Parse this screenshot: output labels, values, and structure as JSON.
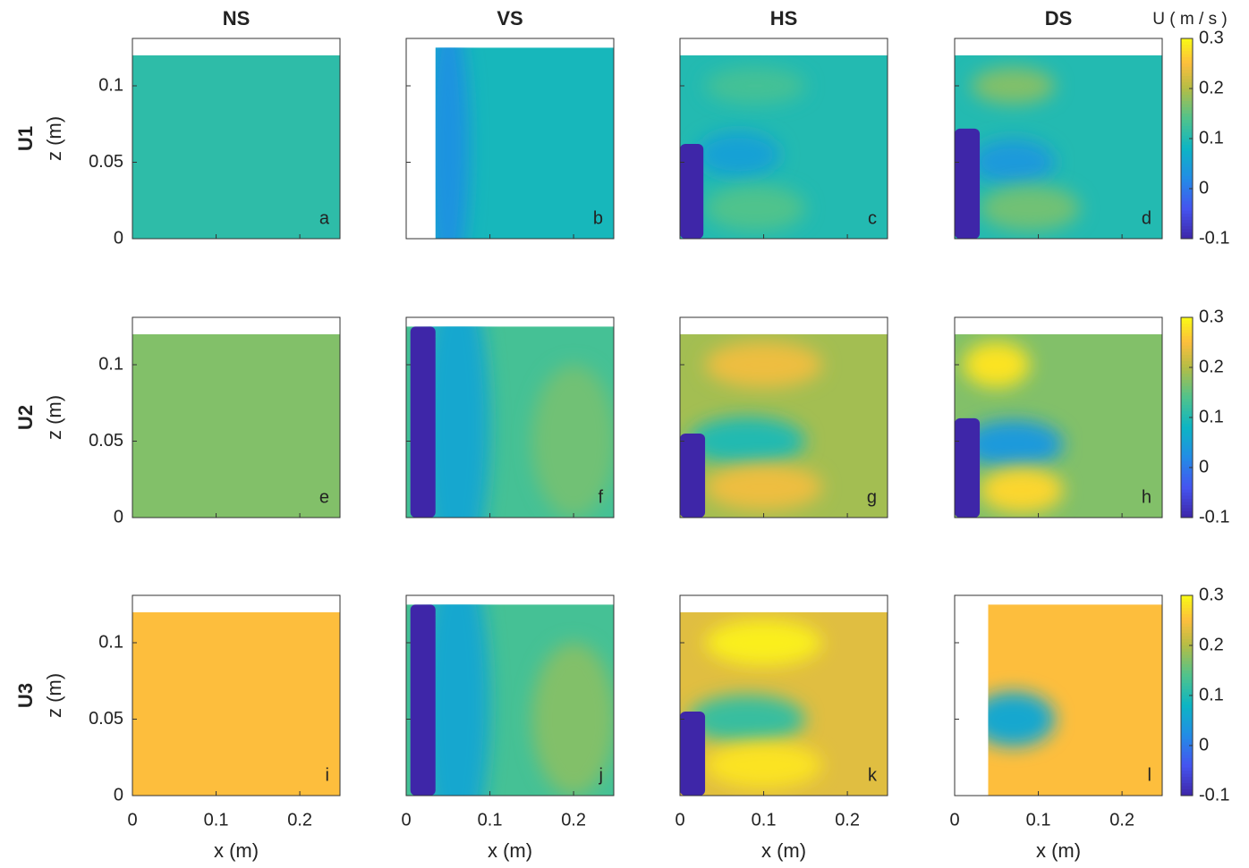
{
  "chart_data": {
    "type": "heatmap",
    "column_titles": [
      "NS",
      "VS",
      "HS",
      "DS"
    ],
    "row_titles": [
      "U1",
      "U2",
      "U3"
    ],
    "xlabel": "x (m)",
    "ylabel": "z (m)",
    "xlim": [
      0,
      0.248
    ],
    "ylim": [
      0,
      0.131
    ],
    "xticks": [
      0,
      0.1,
      0.2
    ],
    "yticks": [
      0,
      0.05,
      0.1
    ],
    "colorbar": {
      "label": "U ( m / s )",
      "lim": [
        -0.1,
        0.3
      ],
      "ticks": [
        -0.1,
        0,
        0.1,
        0.2,
        0.3
      ],
      "colormap": "parula"
    },
    "panels": [
      {
        "label": "a",
        "extent": [
          0,
          0.248,
          0,
          0.12
        ],
        "background": 0.11,
        "features": [],
        "masks": []
      },
      {
        "label": "b",
        "extent": [
          0.035,
          0.248,
          0,
          0.125
        ],
        "background": 0.09,
        "features": [
          {
            "x": 0.05,
            "z": 0.06,
            "rx": 0.025,
            "rz": 0.09,
            "value": 0.03
          }
        ],
        "masks": []
      },
      {
        "label": "c",
        "extent": [
          0,
          0.248,
          0,
          0.12
        ],
        "background": 0.1,
        "features": [
          {
            "x": 0.07,
            "z": 0.055,
            "rx": 0.05,
            "rz": 0.015,
            "value": 0.05
          },
          {
            "x": 0.09,
            "z": 0.02,
            "rx": 0.06,
            "rz": 0.015,
            "value": 0.14
          },
          {
            "x": 0.09,
            "z": 0.1,
            "rx": 0.06,
            "rz": 0.012,
            "value": 0.13
          }
        ],
        "masks": [
          [
            0,
            0.028,
            0,
            0.062
          ]
        ]
      },
      {
        "label": "d",
        "extent": [
          0,
          0.248,
          0,
          0.12
        ],
        "background": 0.1,
        "features": [
          {
            "x": 0.07,
            "z": 0.05,
            "rx": 0.05,
            "rz": 0.015,
            "value": 0.04
          },
          {
            "x": 0.09,
            "z": 0.02,
            "rx": 0.06,
            "rz": 0.015,
            "value": 0.16
          },
          {
            "x": 0.07,
            "z": 0.1,
            "rx": 0.05,
            "rz": 0.012,
            "value": 0.17
          }
        ],
        "masks": [
          [
            0,
            0.03,
            0,
            0.072
          ]
        ]
      },
      {
        "label": "e",
        "extent": [
          0,
          0.248,
          0,
          0.12
        ],
        "background": 0.17,
        "features": [],
        "masks": []
      },
      {
        "label": "f",
        "extent": [
          0,
          0.248,
          0,
          0.125
        ],
        "background": 0.13,
        "features": [
          {
            "x": 0.06,
            "z": 0.06,
            "rx": 0.04,
            "rz": 0.1,
            "value": 0.06
          },
          {
            "x": 0.2,
            "z": 0.05,
            "rx": 0.05,
            "rz": 0.05,
            "value": 0.16
          }
        ],
        "masks": [
          [
            0.005,
            0.035,
            0,
            0.125
          ]
        ]
      },
      {
        "label": "g",
        "extent": [
          0,
          0.248,
          0,
          0.12
        ],
        "background": 0.19,
        "features": [
          {
            "x": 0.08,
            "z": 0.05,
            "rx": 0.07,
            "rz": 0.016,
            "value": 0.1
          },
          {
            "x": 0.1,
            "z": 0.02,
            "rx": 0.07,
            "rz": 0.015,
            "value": 0.24
          },
          {
            "x": 0.1,
            "z": 0.1,
            "rx": 0.07,
            "rz": 0.015,
            "value": 0.24
          }
        ],
        "masks": [
          [
            0,
            0.03,
            0,
            0.055
          ]
        ]
      },
      {
        "label": "h",
        "extent": [
          0,
          0.248,
          0,
          0.12
        ],
        "background": 0.17,
        "features": [
          {
            "x": 0.07,
            "z": 0.048,
            "rx": 0.06,
            "rz": 0.016,
            "value": 0.04
          },
          {
            "x": 0.08,
            "z": 0.018,
            "rx": 0.05,
            "rz": 0.015,
            "value": 0.27
          },
          {
            "x": 0.05,
            "z": 0.1,
            "rx": 0.04,
            "rz": 0.015,
            "value": 0.28
          }
        ],
        "masks": [
          [
            0,
            0.03,
            0,
            0.065
          ]
        ]
      },
      {
        "label": "i",
        "extent": [
          0,
          0.248,
          0,
          0.12
        ],
        "background": 0.25,
        "features": [],
        "masks": []
      },
      {
        "label": "j",
        "extent": [
          0,
          0.248,
          0,
          0.125
        ],
        "background": 0.13,
        "features": [
          {
            "x": 0.06,
            "z": 0.06,
            "rx": 0.04,
            "rz": 0.1,
            "value": 0.06
          },
          {
            "x": 0.2,
            "z": 0.05,
            "rx": 0.05,
            "rz": 0.05,
            "value": 0.17
          }
        ],
        "masks": [
          [
            0.005,
            0.035,
            0,
            0.125
          ]
        ]
      },
      {
        "label": "k",
        "extent": [
          0,
          0.248,
          0,
          0.12
        ],
        "background": 0.23,
        "features": [
          {
            "x": 0.08,
            "z": 0.05,
            "rx": 0.07,
            "rz": 0.016,
            "value": 0.12
          },
          {
            "x": 0.1,
            "z": 0.02,
            "rx": 0.07,
            "rz": 0.015,
            "value": 0.28
          },
          {
            "x": 0.1,
            "z": 0.1,
            "rx": 0.07,
            "rz": 0.015,
            "value": 0.29
          }
        ],
        "masks": [
          [
            0,
            0.03,
            0,
            0.055
          ]
        ]
      },
      {
        "label": "l",
        "extent": [
          0.04,
          0.248,
          0,
          0.125
        ],
        "background": 0.25,
        "features": [
          {
            "x": 0.07,
            "z": 0.05,
            "rx": 0.05,
            "rz": 0.018,
            "value": 0.06
          }
        ],
        "masks": []
      }
    ]
  }
}
